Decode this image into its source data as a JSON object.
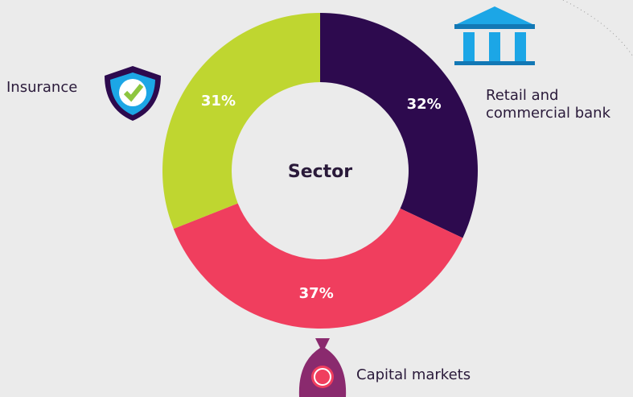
{
  "chart_data": {
    "type": "pie",
    "title": "Sector",
    "categories": [
      "Retail and commercial bank",
      "Capital markets",
      "Insurance"
    ],
    "values": [
      32,
      37,
      31
    ],
    "value_labels": [
      "32%",
      "37%",
      "31%"
    ],
    "colors": [
      "#2d0a4e",
      "#f03e5e",
      "#bfd630"
    ],
    "donut": true
  }
}
